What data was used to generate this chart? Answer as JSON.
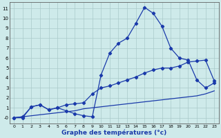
{
  "xlabel": "Graphe des températures (°c)",
  "background_color": "#ceeaea",
  "grid_color": "#aacaca",
  "line_color": "#1a3aaa",
  "xlim_min": -0.5,
  "xlim_max": 23.5,
  "ylim_min": -0.6,
  "ylim_max": 11.6,
  "yticks": [
    0,
    1,
    2,
    3,
    4,
    5,
    6,
    7,
    8,
    9,
    10,
    11
  ],
  "ytick_labels": [
    "-0",
    "1",
    "2",
    "3",
    "4",
    "5",
    "6",
    "7",
    "8",
    "9",
    "10",
    "11"
  ],
  "xticks": [
    0,
    1,
    2,
    3,
    4,
    5,
    6,
    7,
    8,
    9,
    10,
    11,
    12,
    13,
    14,
    15,
    16,
    17,
    18,
    19,
    20,
    21,
    22,
    23
  ],
  "line1_x": [
    0,
    1,
    2,
    3,
    4,
    5,
    6,
    7,
    8,
    9,
    10,
    11,
    12,
    13,
    14,
    15,
    16,
    17,
    18,
    19,
    20,
    21,
    22,
    23
  ],
  "line1_y": [
    0.0,
    0.0,
    1.1,
    1.3,
    0.8,
    1.0,
    0.7,
    0.4,
    0.2,
    0.1,
    4.3,
    6.5,
    7.5,
    8.0,
    9.5,
    11.1,
    10.5,
    9.2,
    7.0,
    6.0,
    5.8,
    3.8,
    3.0,
    3.5
  ],
  "line2_x": [
    0,
    1,
    2,
    3,
    4,
    5,
    6,
    7,
    8,
    9,
    10,
    11,
    12,
    13,
    14,
    15,
    16,
    17,
    18,
    19,
    20,
    21,
    22,
    23
  ],
  "line2_y": [
    0.0,
    0.1,
    1.1,
    1.3,
    0.8,
    1.0,
    1.3,
    1.4,
    1.5,
    2.4,
    3.0,
    3.2,
    3.5,
    3.8,
    4.1,
    4.5,
    4.8,
    5.0,
    5.0,
    5.2,
    5.6,
    5.7,
    5.8,
    3.7
  ],
  "line3_x": [
    0,
    1,
    2,
    3,
    4,
    5,
    6,
    7,
    8,
    9,
    10,
    11,
    12,
    13,
    14,
    15,
    16,
    17,
    18,
    19,
    20,
    21,
    22,
    23
  ],
  "line3_y": [
    0.0,
    0.1,
    0.2,
    0.3,
    0.4,
    0.5,
    0.6,
    0.7,
    0.9,
    1.0,
    1.1,
    1.2,
    1.3,
    1.4,
    1.5,
    1.6,
    1.7,
    1.8,
    1.9,
    2.0,
    2.1,
    2.2,
    2.4,
    2.7
  ]
}
